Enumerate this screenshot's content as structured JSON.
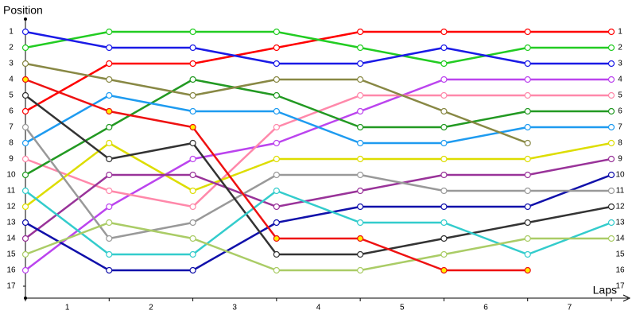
{
  "chart_data": {
    "type": "line",
    "y_axis_label": "Position",
    "x_axis_label": "Laps",
    "x": [
      0,
      1,
      2,
      3,
      4,
      5,
      6,
      7
    ],
    "xlim": [
      0,
      7
    ],
    "xticks": [
      {
        "value": 0.5,
        "label": "1"
      },
      {
        "value": 1.5,
        "label": "2"
      },
      {
        "value": 2.5,
        "label": "3"
      },
      {
        "value": 3.5,
        "label": "4"
      },
      {
        "value": 4.5,
        "label": "5"
      },
      {
        "value": 5.5,
        "label": "6"
      },
      {
        "value": 6.5,
        "label": "7"
      }
    ],
    "xminorticks": [
      0,
      1,
      2,
      3,
      4,
      5,
      6,
      7
    ],
    "ylim": [
      17.75,
      0.25
    ],
    "yticks": [
      1,
      2,
      3,
      4,
      5,
      6,
      7,
      8,
      9,
      10,
      11,
      12,
      13,
      14,
      15,
      16,
      17
    ],
    "y_inverted": true,
    "series": [
      {
        "color": "#ff0000",
        "marker_fill": "#ffffff",
        "values": [
          6,
          3,
          3,
          2,
          1,
          1,
          1,
          1
        ]
      },
      {
        "color": "#22cc22",
        "marker_fill": "#ffffff",
        "values": [
          2,
          1,
          1,
          1,
          2,
          3,
          2,
          2
        ]
      },
      {
        "color": "#1a1ae6",
        "marker_fill": "#ffffff",
        "values": [
          1,
          2,
          2,
          3,
          3,
          2,
          3,
          3
        ]
      },
      {
        "color": "#bb44ee",
        "marker_fill": "#ffffff",
        "values": [
          16,
          12,
          9,
          8,
          6,
          4,
          4,
          4
        ]
      },
      {
        "color": "#ff88aa",
        "marker_fill": "#ffffff",
        "values": [
          9,
          11,
          12,
          7,
          5,
          5,
          5,
          5
        ]
      },
      {
        "color": "#229922",
        "marker_fill": "#ffffff",
        "values": [
          10,
          7,
          4,
          5,
          7,
          7,
          6,
          6
        ]
      },
      {
        "color": "#1e9bf0",
        "marker_fill": "#ffffff",
        "values": [
          8,
          5,
          6,
          6,
          8,
          8,
          7,
          7
        ]
      },
      {
        "color": "#888844",
        "marker_fill": "#ffffff",
        "values": [
          3,
          4,
          5,
          4,
          4,
          6,
          8,
          null
        ]
      },
      {
        "color": "#dddd00",
        "marker_fill": "#ffffff",
        "values": [
          12,
          8,
          11,
          9,
          9,
          9,
          9,
          8
        ]
      },
      {
        "color": "#993399",
        "marker_fill": "#ffffff",
        "values": [
          14,
          10,
          10,
          12,
          11,
          10,
          10,
          9
        ]
      },
      {
        "color": "#1010aa",
        "marker_fill": "#ffffff",
        "values": [
          13,
          16,
          16,
          13,
          12,
          12,
          12,
          10
        ]
      },
      {
        "color": "#999999",
        "marker_fill": "#ffffff",
        "values": [
          7,
          14,
          13,
          10,
          10,
          11,
          11,
          11
        ]
      },
      {
        "color": "#333333",
        "marker_fill": "#ffffff",
        "values": [
          5,
          9,
          8,
          15,
          15,
          14,
          13,
          12
        ]
      },
      {
        "color": "#33cccc",
        "marker_fill": "#ffffff",
        "values": [
          11,
          15,
          15,
          11,
          13,
          13,
          15,
          13
        ]
      },
      {
        "color": "#aacc66",
        "marker_fill": "#ffffff",
        "values": [
          15,
          13,
          14,
          16,
          16,
          15,
          14,
          14
        ]
      },
      {
        "color": "#ee1111",
        "marker_fill": "#ffee00",
        "values": [
          4,
          6,
          7,
          14,
          14,
          16,
          16,
          null
        ]
      }
    ]
  }
}
